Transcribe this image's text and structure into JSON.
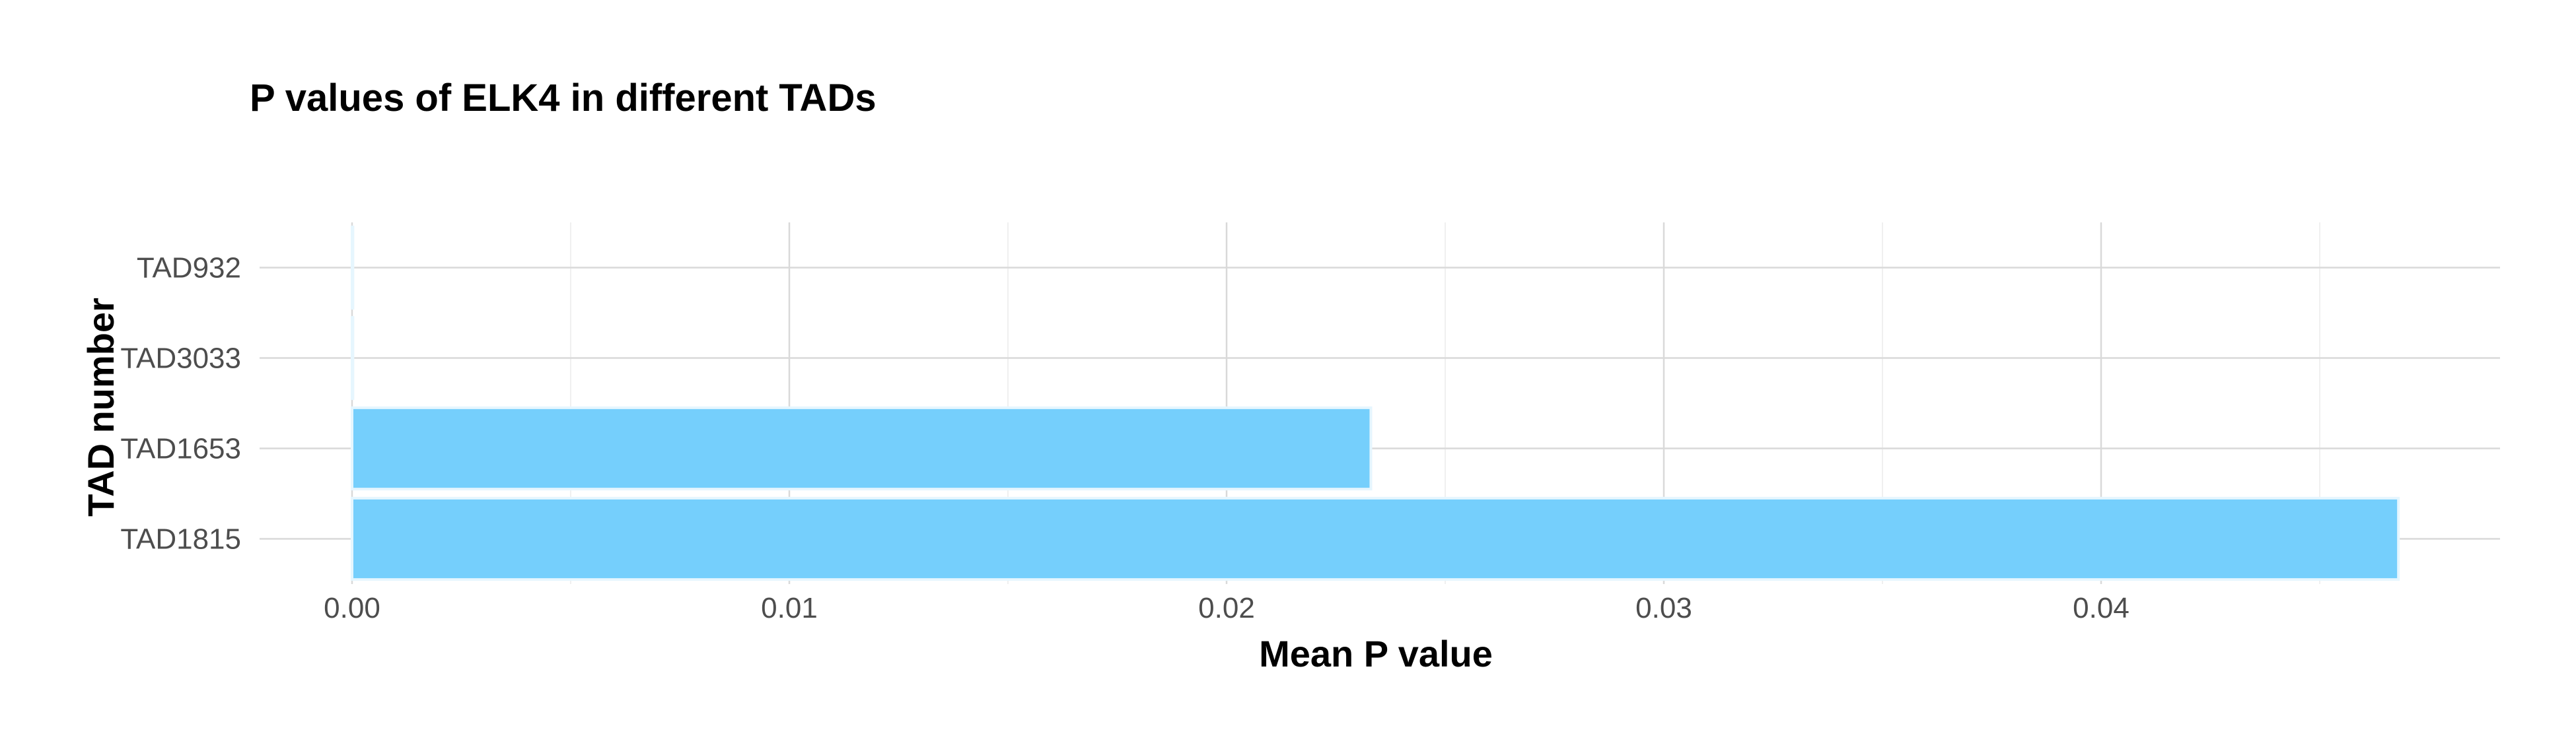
{
  "chart_data": {
    "type": "bar",
    "orientation": "horizontal",
    "title": "P values of ELK4 in different TADs",
    "xlabel": "Mean P value",
    "ylabel": "TAD number",
    "categories": [
      "TAD932",
      "TAD3033",
      "TAD1653",
      "TAD1815"
    ],
    "values": [
      2e-05,
      2e-05,
      0.0233,
      0.0468
    ],
    "xlim": [
      0,
      0.049
    ],
    "xticks": [
      0,
      0.01,
      0.02,
      0.03,
      0.04
    ],
    "xtick_labels": [
      "0.00",
      "0.01",
      "0.02",
      "0.03",
      "0.04"
    ],
    "grid": true,
    "legend": "none",
    "bar_color": "#75cffc",
    "bar_outline": "#e6f6fe"
  }
}
